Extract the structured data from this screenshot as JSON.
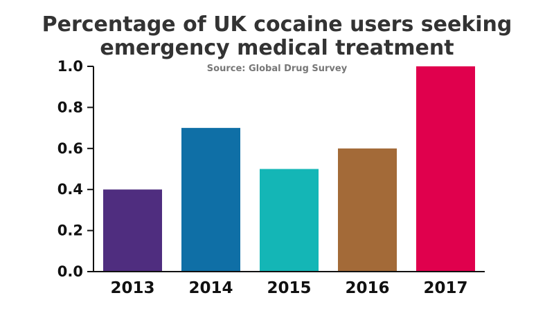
{
  "chart_data": {
    "type": "bar",
    "title_lines": [
      "Percentage of UK cocaine users seeking",
      "emergency medical treatment"
    ],
    "source": "Source: Global Drug Survey",
    "categories": [
      "2013",
      "2014",
      "2015",
      "2016",
      "2017"
    ],
    "values": [
      0.4,
      0.7,
      0.5,
      0.6,
      1.0
    ],
    "colors": [
      "#4f2d7f",
      "#0f6fa6",
      "#14b6b6",
      "#a36a38",
      "#e0004d"
    ],
    "ylim": [
      0,
      1.0
    ],
    "yticks": [
      "0.0",
      "0.2",
      "0.4",
      "0.6",
      "0.8",
      "1.0"
    ],
    "xlabel": "",
    "ylabel": "",
    "grid": false,
    "legend": "none"
  }
}
